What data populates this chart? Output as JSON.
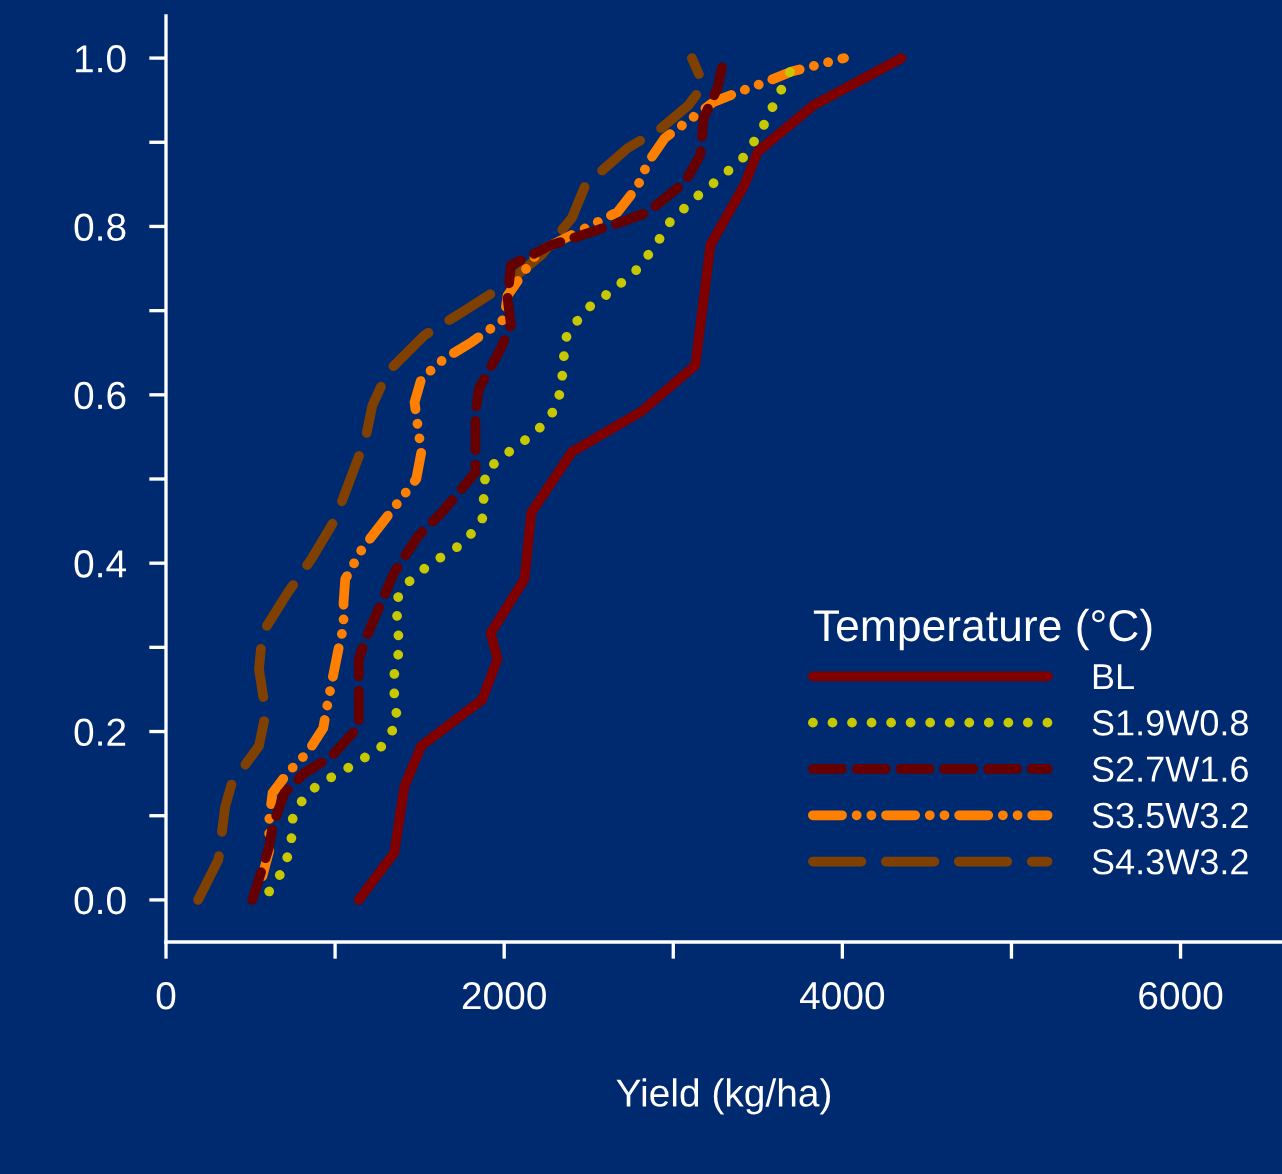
{
  "chart_data": {
    "type": "line",
    "xlabel": "Yield (kg/ha)",
    "legend_title": "Temperature (°C)",
    "legend": "lower right",
    "grid": false,
    "marker": "none",
    "xlim": [
      0,
      6600
    ],
    "ylim": [
      -0.05,
      1.05
    ],
    "xticks": [
      0,
      {
        "value": 1000,
        "label": null
      },
      2000,
      {
        "value": 3000,
        "label": null
      },
      4000,
      {
        "value": 5000,
        "label": null
      },
      6000
    ],
    "yticks": [
      {
        "value": 0,
        "label": "0.0"
      },
      {
        "value": 0.1,
        "label": null
      },
      0.2,
      {
        "value": 0.3,
        "label": null
      },
      0.4,
      {
        "value": 0.5,
        "label": null
      },
      0.6,
      {
        "value": 0.7,
        "label": null
      },
      0.8,
      {
        "value": 0.9,
        "label": null
      },
      {
        "value": 1.0,
        "label": "1.0"
      }
    ],
    "series": [
      {
        "name": "BL",
        "color": "#800000",
        "line_style": "solid",
        "x": [
          1140,
          1350,
          1410,
          1510,
          1870,
          1960,
          1920,
          2120,
          2160,
          2400,
          2810,
          3130,
          3180,
          3220,
          3420,
          3500,
          3830,
          4350
        ],
        "values": [
          0,
          0.056,
          0.135,
          0.183,
          0.238,
          0.286,
          0.317,
          0.381,
          0.46,
          0.532,
          0.58,
          0.635,
          0.714,
          0.778,
          0.849,
          0.889,
          0.944,
          1.0
        ]
      },
      {
        "name": "S1.9W0.8",
        "color": "#c8c800",
        "line_style": "dotted",
        "x": [
          610,
          700,
          740,
          750,
          830,
          980,
          1130,
          1280,
          1370,
          1350,
          1350,
          1380,
          1370,
          1360,
          1460,
          1610,
          1760,
          1870,
          1890,
          2040,
          2190,
          2310,
          2340,
          2350,
          2370,
          2480,
          2640,
          2780,
          2890,
          2980,
          3130,
          3280,
          3420,
          3520,
          3590,
          3660,
          3730
        ],
        "values": [
          0.01,
          0.038,
          0.068,
          0.098,
          0.127,
          0.146,
          0.163,
          0.183,
          0.211,
          0.24,
          0.268,
          0.298,
          0.327,
          0.356,
          0.384,
          0.405,
          0.424,
          0.451,
          0.51,
          0.534,
          0.556,
          0.585,
          0.613,
          0.641,
          0.671,
          0.701,
          0.724,
          0.748,
          0.776,
          0.805,
          0.834,
          0.858,
          0.883,
          0.914,
          0.943,
          0.971,
          1.0
        ]
      },
      {
        "name": "S2.7W1.6",
        "color": "#660000",
        "line_style": "dashed",
        "x": [
          510,
          610,
          630,
          700,
          820,
          980,
          1140,
          1140,
          1180,
          1290,
          1350,
          1490,
          1630,
          1830,
          1830,
          1850,
          1980,
          2040,
          2020,
          2040,
          2280,
          2690,
          2850,
          3070,
          3160,
          3180,
          3260,
          3300
        ],
        "values": [
          0,
          0.063,
          0.087,
          0.127,
          0.151,
          0.171,
          0.206,
          0.286,
          0.31,
          0.361,
          0.389,
          0.432,
          0.46,
          0.508,
          0.58,
          0.607,
          0.655,
          0.683,
          0.714,
          0.754,
          0.778,
          0.805,
          0.817,
          0.853,
          0.885,
          0.929,
          0.964,
          1.0
        ]
      },
      {
        "name": "S3.5W3.2",
        "color": "#ff8000",
        "line_style": "dashdot",
        "x": [
          570,
          610,
          610,
          630,
          720,
          840,
          930,
          960,
          1020,
          1050,
          1050,
          1060,
          1160,
          1260,
          1480,
          1510,
          1470,
          1510,
          1640,
          1810,
          2000,
          2020,
          2200,
          2360,
          2670,
          2790,
          2850,
          2950,
          3240,
          3390,
          3540,
          3700,
          4010
        ],
        "values": [
          0.028,
          0.058,
          0.095,
          0.127,
          0.151,
          0.176,
          0.204,
          0.238,
          0.298,
          0.325,
          0.353,
          0.381,
          0.417,
          0.443,
          0.5,
          0.532,
          0.591,
          0.619,
          0.642,
          0.663,
          0.69,
          0.718,
          0.77,
          0.786,
          0.817,
          0.848,
          0.876,
          0.905,
          0.948,
          0.96,
          0.971,
          0.984,
          1.0
        ]
      },
      {
        "name": "S4.3W3.2",
        "color": "#804000",
        "line_style": "longdash",
        "x": [
          190,
          310,
          350,
          390,
          550,
          590,
          550,
          570,
          720,
          860,
          1000,
          1180,
          1220,
          1310,
          1530,
          1750,
          2000,
          2220,
          2400,
          2480,
          2730,
          2930,
          3090,
          3180,
          3110
        ],
        "values": [
          0,
          0.048,
          0.111,
          0.139,
          0.183,
          0.222,
          0.274,
          0.317,
          0.365,
          0.405,
          0.452,
          0.548,
          0.587,
          0.627,
          0.671,
          0.698,
          0.73,
          0.766,
          0.81,
          0.849,
          0.893,
          0.917,
          0.944,
          0.968,
          1.0
        ]
      }
    ]
  }
}
